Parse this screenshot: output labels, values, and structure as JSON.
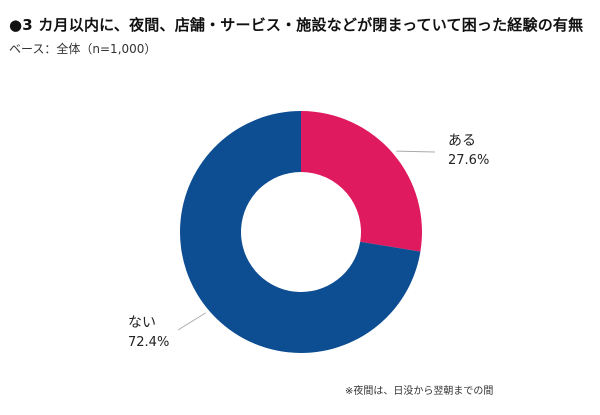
{
  "header": {
    "title": "●3 カ月以内に、夜間、店舗・サービス・施設などが閉まっていて困った経験の有無",
    "base_note": "ベース：全体（n=1,000）"
  },
  "footnote": "※夜間は、日没から翌朝までの間",
  "colors": {
    "slice_yes": "#e01a5f",
    "slice_no": "#0d4d91",
    "leader_line": "#aaaaaa",
    "background": "#ffffff"
  },
  "chart_data": {
    "type": "pie",
    "variant": "donut",
    "categories": [
      "ある",
      "ない"
    ],
    "values": [
      27.6,
      72.4
    ],
    "value_labels": [
      "27.6%",
      "72.4%"
    ],
    "start_angle_deg": 0,
    "direction": "clockwise"
  }
}
